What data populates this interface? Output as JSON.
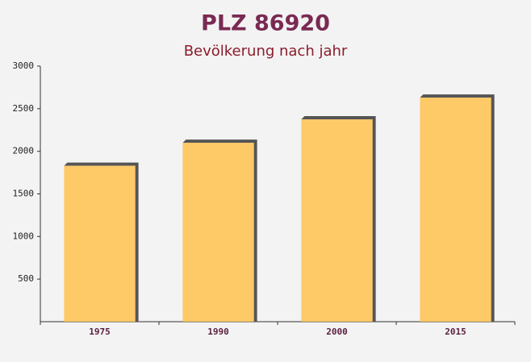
{
  "chart_data": {
    "type": "bar",
    "title": "PLZ 86920",
    "subtitle": "Bevölkerung nach jahr",
    "categories": [
      "1975",
      "1990",
      "2000",
      "2015"
    ],
    "values": [
      1830,
      2100,
      2375,
      2630
    ],
    "color": "#ffc14d",
    "ylim": [
      0,
      3000
    ],
    "yticks": [
      500,
      1000,
      1500,
      2000,
      2500,
      3000
    ]
  }
}
